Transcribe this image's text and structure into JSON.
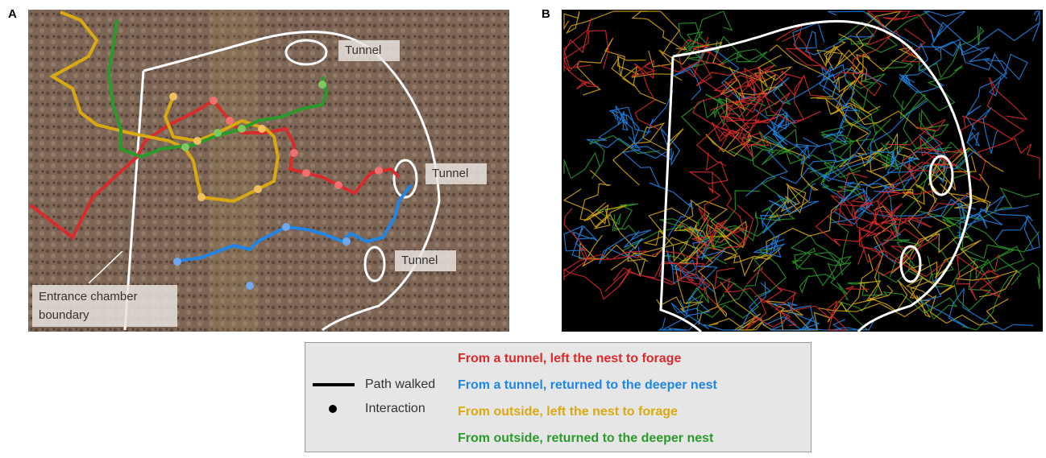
{
  "panels": [
    {
      "label": "A",
      "tunnels": [
        "Tunnel",
        "Tunnel",
        "Tunnel"
      ],
      "boundary": [
        "Entrance chamber",
        "boundary"
      ]
    },
    {
      "label": "B"
    }
  ],
  "legend": {
    "path": "Path walked",
    "interaction": "Interaction",
    "categories": [
      {
        "name": "From a tunnel, left the nest to forage",
        "color": "#d92b2b"
      },
      {
        "name": "From a tunnel, returned to the deeper nest",
        "color": "#1f86e8"
      },
      {
        "name": "From outside, left the nest to forage",
        "color": "#d9a90f"
      },
      {
        "name": "From outside, returned to the deeper nest",
        "color": "#2a9a2a"
      }
    ]
  }
}
